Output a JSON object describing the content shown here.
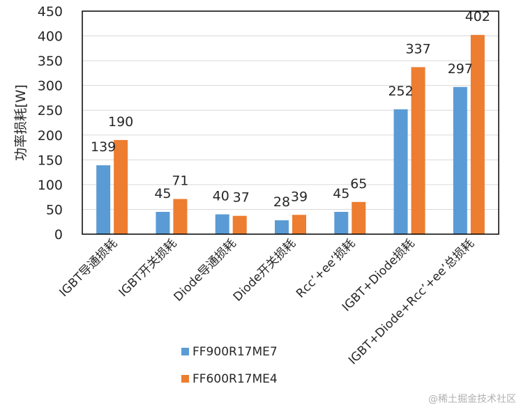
{
  "chart_data": {
    "type": "bar",
    "categories": [
      "IGBT导通损耗",
      "IGBT开关损耗",
      "Diode导通损耗",
      "Diode开关损耗",
      "Rcc’+ee’损耗",
      "IGBT+Diode损耗",
      "IGBT+Diode+Rcc’+ee’总损耗"
    ],
    "series": [
      {
        "name": "FF900R17ME7",
        "values": [
          139,
          45,
          40,
          28,
          45,
          252,
          297
        ],
        "color": "#5b9bd5"
      },
      {
        "name": "FF600R17ME4",
        "values": [
          190,
          71,
          37,
          39,
          65,
          337,
          402
        ],
        "color": "#ed7d31"
      }
    ],
    "title": "",
    "xlabel": "",
    "ylabel": "功率损耗[W]",
    "ylim": [
      0,
      450
    ],
    "yticks": [
      0,
      50,
      100,
      150,
      200,
      250,
      300,
      350,
      400,
      450
    ],
    "grid": true,
    "legend": "bottom-center"
  },
  "watermark": "@稀土掘金技术社区"
}
